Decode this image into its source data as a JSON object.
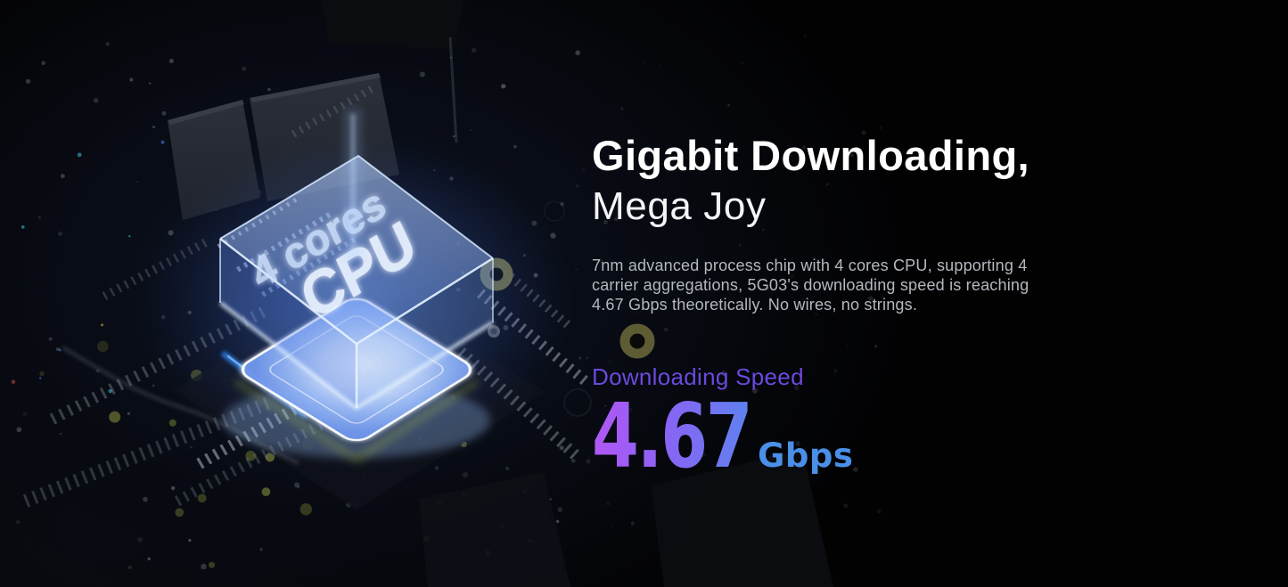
{
  "hero": {
    "heading_bold": "Gigabit Downloading,",
    "heading_light": "Mega Joy",
    "description": "7nm advanced process chip with 4 cores CPU, supporting 4 carrier aggregations, 5G03's downloading speed is reaching 4.67 Gbps theoretically. No wires, no strings.",
    "speed": {
      "label": "Downloading Speed",
      "value": "4.67",
      "unit": "Gbps"
    }
  },
  "chip": {
    "label_cores": "4 cores",
    "label_cpu": "CPU"
  },
  "colors": {
    "background": "#020203",
    "heading": "#ffffff",
    "description": "#b4b8bf",
    "speed_label": "#6c49dd",
    "speed_value_gradient_start": "#b257f5",
    "speed_value_gradient_end": "#5e82f0",
    "speed_unit": "#4a8fe8",
    "chip_glow_blue": "#7fa8f4",
    "board_via_olive": "#6e6b3a"
  }
}
